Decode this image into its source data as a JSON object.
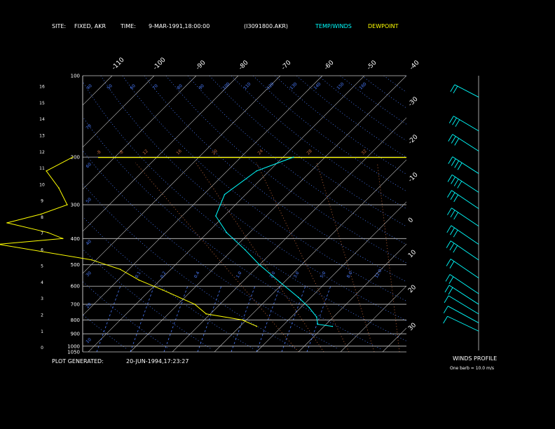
{
  "header": {
    "site_label": "SITE:",
    "site_value": "FIXED, AKR",
    "time_label": "TIME:",
    "time_value": "9-MAR-1991,18:00:00",
    "file_id": "(I3091800.AKR)",
    "legend_temp_winds": "TEMP/WINDS",
    "legend_dewpoint": "DEWPOINT"
  },
  "footer": {
    "generated_label": "PLOT GENERATED:",
    "generated_value": "20-JUN-1994,17:23:27",
    "winds_profile_label": "WINDS PROFILE",
    "barb_note": "One barb = 10.0 m/s"
  },
  "colors": {
    "temp": "#00ffff",
    "dewpoint": "#ffff00",
    "isobar": "#c8c8c8",
    "isotherm": "#c8c8c8",
    "mixing_ratio": "#4a7cff",
    "dry_adiabat": "#4a7cff",
    "moist_adiabat": "#c86a3c"
  },
  "chart_data": {
    "type": "line",
    "title": "",
    "xlabel": "",
    "ylabel": "",
    "pressure_levels_hpa": [
      100,
      200,
      300,
      400,
      500,
      600,
      700,
      800,
      900,
      1000,
      1050
    ],
    "pressure_tick_labels": [
      "100",
      "200",
      "300",
      "400",
      "500",
      "600",
      "700",
      "800",
      "900",
      "1000",
      "1050"
    ],
    "height_km_ticks": [
      0,
      1,
      2,
      3,
      4,
      5,
      6,
      7,
      8,
      9,
      10,
      11,
      12,
      13,
      14,
      15,
      16
    ],
    "height_km_tick_labels": [
      "0",
      "1",
      "2",
      "3",
      "4",
      "5",
      "6",
      "7",
      "8",
      "9",
      "10",
      "11",
      "12",
      "13",
      "14",
      "15",
      "16"
    ],
    "temp_top_labels": [
      "-110",
      "-100",
      "-90",
      "-80",
      "-70",
      "-60",
      "-50",
      "-40"
    ],
    "temp_right_labels": [
      "-30",
      "-20",
      "-10",
      "0",
      "10",
      "20",
      "30"
    ],
    "mixing_ratio_labels": [
      "0.1",
      "0.2",
      "0.4",
      "1.0",
      "2.0",
      "3.0",
      "5.0",
      "8.0",
      "12.0"
    ],
    "theta_top_labels": [
      "40",
      "50",
      "60",
      "70",
      "80",
      "90",
      "100",
      "110",
      "120",
      "130",
      "140",
      "150",
      "160"
    ],
    "theta_left_labels": [
      "10",
      "20",
      "30",
      "40",
      "50",
      "60",
      "70",
      "80",
      "90",
      "100",
      "110",
      "120",
      "130",
      "140",
      "150",
      "160"
    ],
    "theta_200_labels": [
      "-8",
      "-8",
      "12",
      "16",
      "20",
      "24",
      "28",
      "32"
    ],
    "series": [
      {
        "name": "TEMP/WINDS",
        "values": [
          {
            "p": 200,
            "t": -47.5
          },
          {
            "p": 225,
            "t": -53
          },
          {
            "p": 275,
            "t": -55
          },
          {
            "p": 330,
            "t": -52
          },
          {
            "p": 380,
            "t": -45.5
          },
          {
            "p": 440,
            "t": -37
          },
          {
            "p": 500,
            "t": -30
          },
          {
            "p": 580,
            "t": -21
          },
          {
            "p": 660,
            "t": -13
          },
          {
            "p": 720,
            "t": -8
          },
          {
            "p": 780,
            "t": -4
          },
          {
            "p": 830,
            "t": -2
          },
          {
            "p": 845,
            "t": 2
          }
        ]
      },
      {
        "name": "DEWPOINT",
        "values": [
          {
            "p": 200,
            "t": -100
          },
          {
            "p": 225,
            "t": -103
          },
          {
            "p": 260,
            "t": -96
          },
          {
            "p": 300,
            "t": -90
          },
          {
            "p": 325,
            "t": -94
          },
          {
            "p": 350,
            "t": -100
          },
          {
            "p": 380,
            "t": -88
          },
          {
            "p": 400,
            "t": -83
          },
          {
            "p": 420,
            "t": -97
          },
          {
            "p": 480,
            "t": -71
          },
          {
            "p": 520,
            "t": -62
          },
          {
            "p": 570,
            "t": -55
          },
          {
            "p": 620,
            "t": -47
          },
          {
            "p": 700,
            "t": -36
          },
          {
            "p": 760,
            "t": -31
          },
          {
            "p": 800,
            "t": -21
          },
          {
            "p": 845,
            "t": -16
          }
        ]
      }
    ],
    "winds": [
      {
        "p": 120,
        "dir": 320,
        "speed": 20
      },
      {
        "p": 160,
        "dir": 310,
        "speed": 25
      },
      {
        "p": 190,
        "dir": 300,
        "speed": 30
      },
      {
        "p": 230,
        "dir": 300,
        "speed": 35
      },
      {
        "p": 270,
        "dir": 295,
        "speed": 35
      },
      {
        "p": 310,
        "dir": 290,
        "speed": 30
      },
      {
        "p": 360,
        "dir": 290,
        "speed": 30
      },
      {
        "p": 420,
        "dir": 285,
        "speed": 25
      },
      {
        "p": 480,
        "dir": 280,
        "speed": 25
      },
      {
        "p": 560,
        "dir": 280,
        "speed": 20
      },
      {
        "p": 640,
        "dir": 270,
        "speed": 15
      },
      {
        "p": 700,
        "dir": 260,
        "speed": 15
      },
      {
        "p": 760,
        "dir": 250,
        "speed": 10
      },
      {
        "p": 820,
        "dir": 240,
        "speed": 10
      },
      {
        "p": 880,
        "dir": 230,
        "speed": 10
      }
    ]
  }
}
